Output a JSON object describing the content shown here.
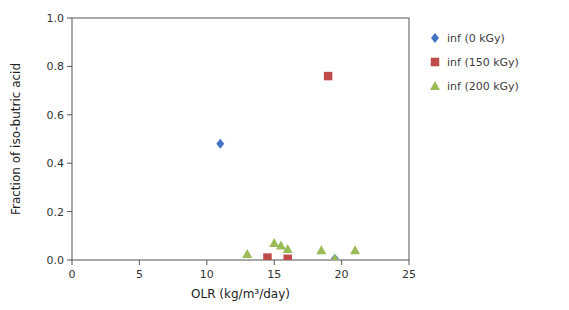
{
  "chart_data": {
    "type": "scatter",
    "xlabel": "OLR (kg/m³/day)",
    "ylabel": "Fraction of iso-butric acid",
    "series": [
      {
        "name": "inf (0 kGy)",
        "color": "#4472C4",
        "marker": "diamond",
        "x": [
          11.0,
          14.5,
          19.5
        ],
        "values": [
          0.48,
          0.005,
          0.005
        ]
      },
      {
        "name": "inf (150 kGy)",
        "color": "#BE4B48",
        "marker": "square",
        "x": [
          14.5,
          16.0,
          19.0
        ],
        "values": [
          0.01,
          0.005,
          0.76
        ]
      },
      {
        "name": "inf (200 kGy)",
        "color": "#9BBB59",
        "marker": "triangle",
        "x": [
          13.0,
          15.0,
          15.5,
          16.0,
          18.5,
          19.5,
          21.0
        ],
        "values": [
          0.025,
          0.07,
          0.06,
          0.045,
          0.04,
          0.005,
          0.04
        ]
      }
    ],
    "xlim": [
      0,
      25
    ],
    "ylim": [
      0,
      1
    ],
    "xticks": [
      0,
      5,
      10,
      15,
      20,
      25
    ],
    "yticks": [
      {
        "value": 0,
        "label": "0.0"
      },
      0.2,
      0.4,
      0.6,
      0.8,
      {
        "value": 1.0,
        "label": "1.0"
      }
    ],
    "grid": false,
    "legend": "right"
  }
}
